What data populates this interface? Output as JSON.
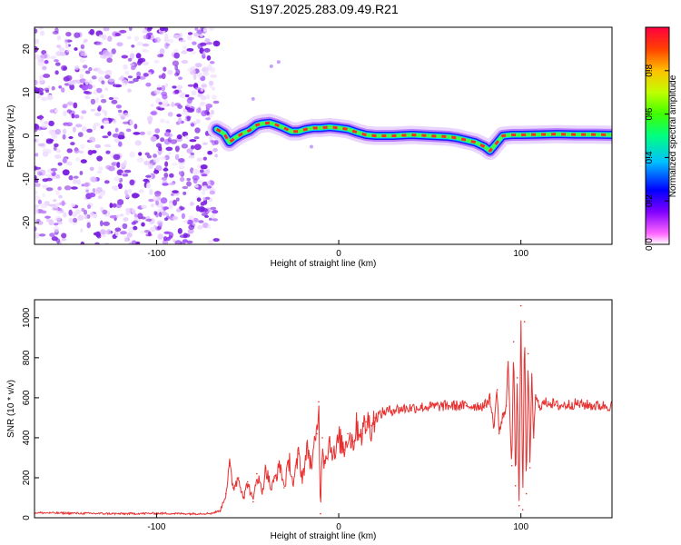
{
  "title": "S197.2025.283.09.49.R21",
  "chart_data": [
    {
      "type": "heatmap",
      "title": "",
      "xlabel": "Height of straight line (km)",
      "ylabel": "Frequency (Hz)",
      "xlim": [
        -167,
        150
      ],
      "ylim": [
        -25,
        25
      ],
      "x_ticks": [
        -100,
        0,
        100
      ],
      "y_ticks": [
        -20,
        -10,
        0,
        10,
        20
      ],
      "noise_region_x": [
        -167,
        -67
      ],
      "colorbar": {
        "label": "Normalized spectral amplitude",
        "range": [
          0,
          1
        ],
        "ticks": [
          "0.0",
          "0.2",
          "0.4",
          "0.6",
          "0.8"
        ],
        "colors": [
          "#ffffff",
          "#ff66ff",
          "#8000ff",
          "#0000ff",
          "#00c0ff",
          "#00ff80",
          "#40ff00",
          "#c0ff00",
          "#ffc000",
          "#ff4000",
          "#ff0040"
        ]
      },
      "signal_track": {
        "x": [
          -67,
          -63,
          -60,
          -57,
          -53,
          -49,
          -45,
          -42,
          -38,
          -34,
          -30,
          -26,
          -22,
          -18,
          -14,
          -10,
          -5,
          0,
          5,
          10,
          15,
          20,
          25,
          30,
          40,
          50,
          60,
          65,
          70,
          75,
          80,
          83,
          86,
          90,
          95,
          100,
          110,
          120,
          130,
          140,
          150
        ],
        "frequency": [
          1.5,
          0.5,
          -1.5,
          -0.5,
          0.5,
          1.2,
          2.5,
          2.8,
          3.0,
          2.5,
          1.8,
          1.0,
          1.0,
          1.5,
          1.8,
          1.8,
          2.0,
          1.8,
          1.5,
          0.8,
          0.2,
          0.0,
          0.0,
          0.0,
          0.2,
          0.0,
          -0.2,
          -0.5,
          -1.0,
          -1.5,
          -2.5,
          -3.5,
          -2.0,
          0.0,
          0.2,
          0.2,
          0.3,
          0.4,
          0.3,
          0.3,
          0.2
        ]
      }
    },
    {
      "type": "line",
      "title": "",
      "xlabel": "Height of straight line (km)",
      "ylabel": "SNR (10 * v/v)",
      "xlim": [
        -167,
        150
      ],
      "ylim": [
        0,
        1090
      ],
      "x_ticks": [
        -100,
        0,
        100
      ],
      "y_ticks": [
        0,
        200,
        400,
        600,
        800,
        1000
      ],
      "series": [
        {
          "name": "SNR",
          "color": "#e83030",
          "x": [
            -167,
            -140,
            -120,
            -100,
            -80,
            -70,
            -65,
            -62,
            -60,
            -58,
            -55,
            -52,
            -50,
            -47,
            -45,
            -42,
            -40,
            -37,
            -35,
            -32,
            -30,
            -27,
            -25,
            -22,
            -20,
            -17,
            -15,
            -12,
            -11,
            -10,
            -9,
            -8,
            -5,
            -2,
            0,
            3,
            5,
            8,
            10,
            13,
            15,
            18,
            20,
            25,
            30,
            40,
            50,
            60,
            70,
            80,
            83,
            85,
            87,
            88,
            90,
            92,
            93,
            95,
            96,
            97,
            98,
            99,
            100,
            101,
            102,
            103,
            104,
            105,
            106,
            107,
            108,
            110,
            115,
            120,
            130,
            140,
            150
          ],
          "values": [
            25,
            22,
            20,
            22,
            20,
            22,
            35,
            120,
            260,
            150,
            200,
            100,
            180,
            80,
            220,
            130,
            250,
            140,
            200,
            260,
            150,
            290,
            160,
            320,
            200,
            350,
            260,
            420,
            580,
            20,
            400,
            280,
            380,
            300,
            400,
            340,
            420,
            380,
            460,
            420,
            480,
            460,
            500,
            530,
            540,
            550,
            555,
            560,
            560,
            560,
            600,
            450,
            640,
            420,
            500,
            560,
            780,
            260,
            880,
            160,
            700,
            60,
            1060,
            40,
            980,
            120,
            820,
            250,
            700,
            400,
            600,
            560,
            580,
            560,
            570,
            560,
            560
          ]
        }
      ]
    }
  ]
}
